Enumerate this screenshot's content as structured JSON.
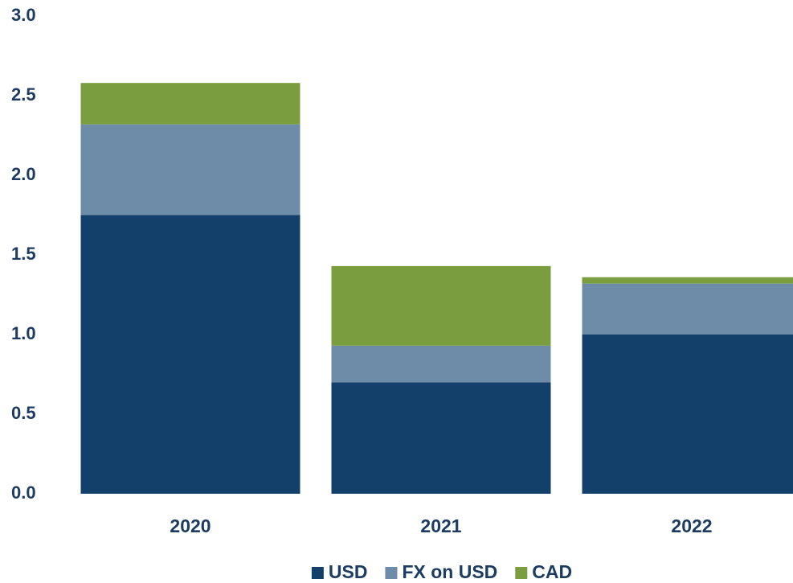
{
  "chart_data": {
    "type": "stacked_bar",
    "categories": [
      "2020",
      "2021",
      "2022"
    ],
    "series": [
      {
        "name": "USD",
        "color": "#12406a",
        "values": [
          1.75,
          0.7,
          1.0
        ]
      },
      {
        "name": "FX on USD",
        "color": "#6e8ca8",
        "values": [
          0.57,
          0.23,
          0.32
        ]
      },
      {
        "name": "CAD",
        "color": "#7a9e3f",
        "values": [
          0.26,
          0.5,
          0.04
        ]
      }
    ],
    "ylim": [
      0,
      3
    ],
    "yticks": [
      {
        "value": 0,
        "label": "0.0"
      },
      {
        "value": 0.5,
        "label": "0.5"
      },
      {
        "value": 1,
        "label": "1.0"
      },
      {
        "value": 1.5,
        "label": "1.5"
      },
      {
        "value": 2,
        "label": "2.0"
      },
      {
        "value": 2.5,
        "label": "2.5"
      },
      {
        "value": 3,
        "label": "3.0"
      }
    ],
    "grid": false,
    "legend": "bottom"
  }
}
